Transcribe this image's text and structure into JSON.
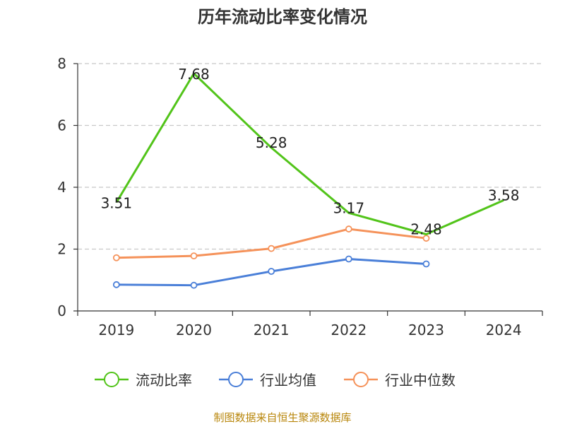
{
  "chart_data": {
    "type": "line",
    "title": "历年流动比率变化情况",
    "categories": [
      "2019",
      "2020",
      "2021",
      "2022",
      "2023",
      "2024"
    ],
    "ylim": [
      0,
      8
    ],
    "yticks": [
      0,
      2,
      4,
      6,
      8
    ],
    "grid": "horizontal dashed",
    "legend_position": "bottom",
    "series": [
      {
        "name": "流动比率",
        "color": "#52c41a",
        "values": [
          3.51,
          7.68,
          5.28,
          3.17,
          2.48,
          3.58
        ],
        "labels": [
          "3.51",
          "7.68",
          "5.28",
          "3.17",
          "2.48",
          "3.58"
        ],
        "show_markers": false
      },
      {
        "name": "行业均值",
        "color": "#4a7fd8",
        "values": [
          0.85,
          0.83,
          1.28,
          1.68,
          1.52,
          null
        ],
        "show_markers": true
      },
      {
        "name": "行业中位数",
        "color": "#f5925a",
        "values": [
          1.72,
          1.78,
          2.02,
          2.65,
          2.35,
          null
        ],
        "show_markers": true
      }
    ]
  },
  "source": "制图数据来自恒生聚源数据库"
}
